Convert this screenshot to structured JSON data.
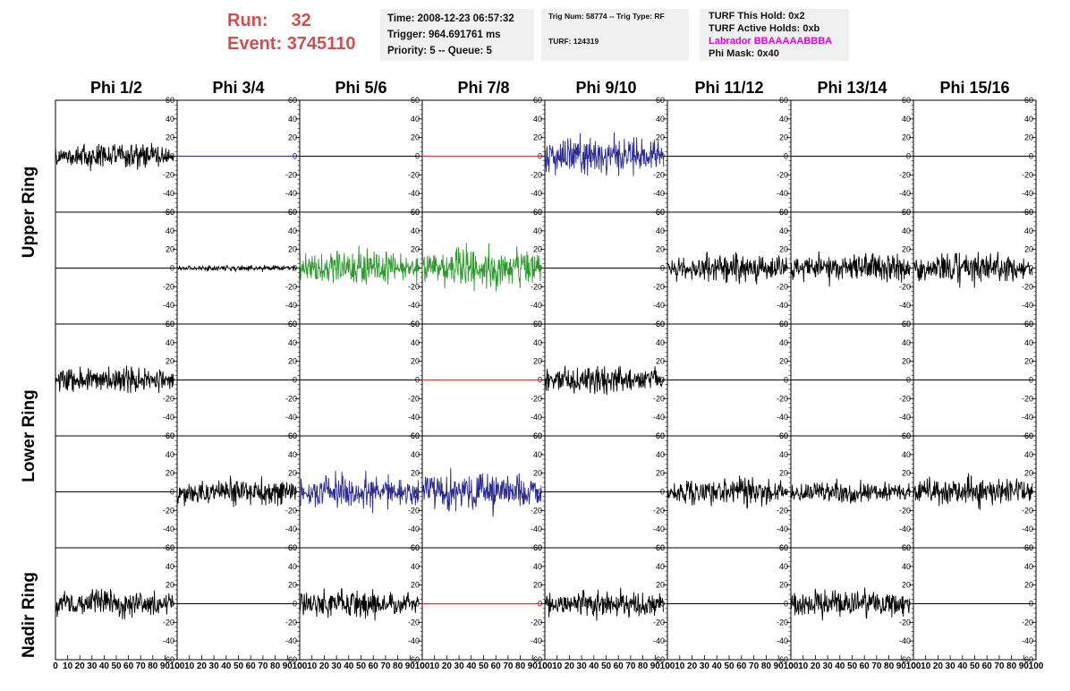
{
  "header": {
    "run_label": "Run:",
    "run_value": "32",
    "event_label": "Event:",
    "event_value": "3745110",
    "time": "Time: 2008-12-23 06:57:32",
    "trigger": "Trigger: 964.691761 ms",
    "priority": "Priority: 5 -- Queue: 5",
    "trig_num": "Trig Num: 58774 -- Trig Type: RF",
    "turf": "TURF: 124319",
    "turf_this_hold": "TURF This Hold: 0x2",
    "turf_active_holds": "TURF Active Holds: 0xb",
    "labrador": "Labrador BBAAAAABBBA",
    "phi_mask": "Phi Mask: 0x40"
  },
  "colors": {
    "header_red": "#d05050",
    "labrador_magenta": "#e000e0",
    "info_box_bg": "#f0f0f0",
    "trace_black": "#000000",
    "trace_blue": "#2a2a8f",
    "trace_green": "#2e9a2e",
    "trace_red": "#d03030"
  },
  "chart_data": {
    "type": "line",
    "description_columns": [
      "Phi 1/2",
      "Phi 3/4",
      "Phi 5/6",
      "Phi 7/8",
      "Phi 9/10",
      "Phi 11/12",
      "Phi 13/14",
      "Phi 15/16"
    ],
    "ring_labels": [
      "Upper Ring",
      "Lower Ring",
      "Nadir Ring"
    ],
    "ylim": [
      -60,
      60
    ],
    "y_ticks": [
      -60,
      -40,
      -20,
      0,
      20,
      40,
      60
    ],
    "y_tick_labels": [
      "-60",
      "-40",
      "-20",
      "0",
      "20",
      "40",
      "60"
    ],
    "xlim": [
      0,
      100
    ],
    "x_ticks": [
      0,
      10,
      20,
      30,
      40,
      50,
      60,
      70,
      80,
      90,
      100
    ],
    "x_tick_labels": [
      "0",
      "10",
      "20",
      "30",
      "40",
      "50",
      "60",
      "70",
      "80",
      "90",
      "100"
    ],
    "samples_per_trace": 260,
    "panels": [
      [
        {
          "color": "black",
          "amp": 13
        },
        {
          "color": "blue",
          "amp": 0
        },
        {
          "color": "black",
          "amp": 0
        },
        {
          "color": "red",
          "amp": 0
        },
        {
          "color": "blue",
          "amp": 20
        },
        {
          "color": "black",
          "amp": 0
        },
        {
          "color": "black",
          "amp": 0
        },
        {
          "color": "black",
          "amp": 0
        }
      ],
      [
        {
          "color": "black",
          "amp": 0
        },
        {
          "color": "black",
          "amp": 3
        },
        {
          "color": "green",
          "amp": 18
        },
        {
          "color": "green",
          "amp": 20
        },
        {
          "color": "black",
          "amp": 0
        },
        {
          "color": "black",
          "amp": 15
        },
        {
          "color": "black",
          "amp": 15
        },
        {
          "color": "black",
          "amp": 15
        }
      ],
      [
        {
          "color": "black",
          "amp": 14
        },
        {
          "color": "black",
          "amp": 0
        },
        {
          "color": "black",
          "amp": 0
        },
        {
          "color": "red",
          "amp": 0
        },
        {
          "color": "black",
          "amp": 14
        },
        {
          "color": "black",
          "amp": 0
        },
        {
          "color": "black",
          "amp": 0
        },
        {
          "color": "black",
          "amp": 0
        }
      ],
      [
        {
          "color": "black",
          "amp": 0
        },
        {
          "color": "black",
          "amp": 14
        },
        {
          "color": "blue",
          "amp": 18
        },
        {
          "color": "blue",
          "amp": 20
        },
        {
          "color": "black",
          "amp": 0
        },
        {
          "color": "black",
          "amp": 14
        },
        {
          "color": "black",
          "amp": 12
        },
        {
          "color": "black",
          "amp": 14
        }
      ],
      [
        {
          "color": "black",
          "amp": 14
        },
        {
          "color": "black",
          "amp": 0
        },
        {
          "color": "black",
          "amp": 14
        },
        {
          "color": "red",
          "amp": 0
        },
        {
          "color": "black",
          "amp": 14
        },
        {
          "color": "black",
          "amp": 0
        },
        {
          "color": "black",
          "amp": 14
        },
        {
          "color": "black",
          "amp": 0
        }
      ]
    ]
  }
}
